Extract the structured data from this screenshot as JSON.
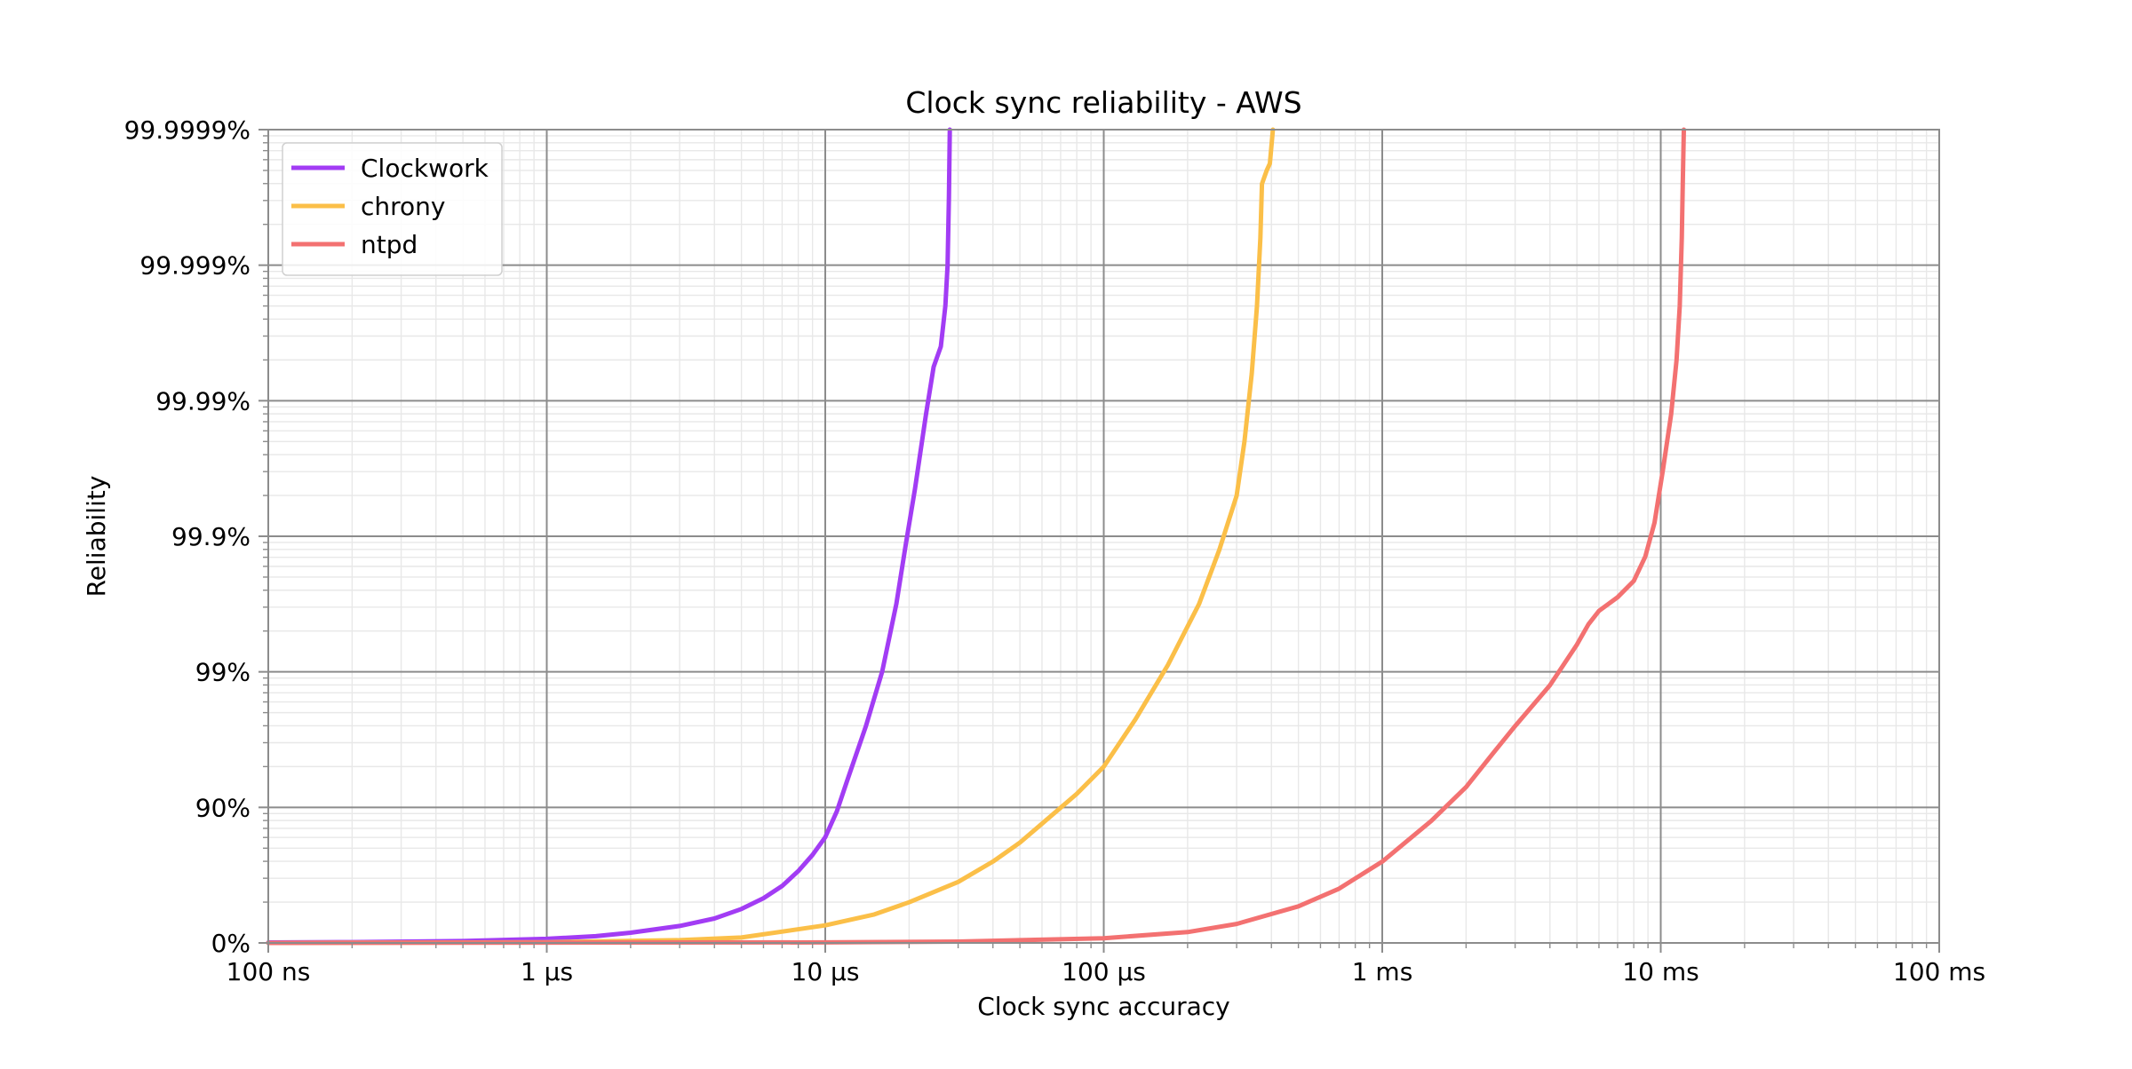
{
  "chart_data": {
    "type": "line",
    "title": "Clock sync reliability - AWS",
    "xlabel": "Clock sync accuracy",
    "ylabel": "Reliability",
    "x_scale": "log",
    "y_scale": "log of 1/(1 - reliability)",
    "xlim_seconds": [
      1e-07,
      0.1
    ],
    "ylim_nines": [
      0,
      6
    ],
    "x_ticks": [
      {
        "value": 1e-07,
        "label": "100 ns"
      },
      {
        "value": 1e-06,
        "label": "1 µs"
      },
      {
        "value": 1e-05,
        "label": "10 µs"
      },
      {
        "value": 0.0001,
        "label": "100 µs"
      },
      {
        "value": 0.001,
        "label": "1 ms"
      },
      {
        "value": 0.01,
        "label": "10 ms"
      },
      {
        "value": 0.1,
        "label": "100 ms"
      }
    ],
    "y_ticks": [
      {
        "nines": 0,
        "label": "0%"
      },
      {
        "nines": 1,
        "label": "90%"
      },
      {
        "nines": 2,
        "label": "99%"
      },
      {
        "nines": 3,
        "label": "99.9%"
      },
      {
        "nines": 4,
        "label": "99.99%"
      },
      {
        "nines": 5,
        "label": "99.999%"
      },
      {
        "nines": 6,
        "label": "99.9999%"
      }
    ],
    "grid": true,
    "legend_position": "top-left",
    "series": [
      {
        "name": "Clockwork",
        "color": "#a23cf4",
        "points": [
          [
            1e-07,
            0.003
          ],
          [
            2e-07,
            0.006
          ],
          [
            5e-07,
            0.014
          ],
          [
            1e-06,
            0.03
          ],
          [
            1.5e-06,
            0.05
          ],
          [
            2e-06,
            0.075
          ],
          [
            3e-06,
            0.125
          ],
          [
            4e-06,
            0.18
          ],
          [
            5e-06,
            0.25
          ],
          [
            6e-06,
            0.33
          ],
          [
            7e-06,
            0.42
          ],
          [
            8e-06,
            0.53
          ],
          [
            9e-06,
            0.65
          ],
          [
            1e-05,
            0.78
          ],
          [
            1.1e-05,
            0.97
          ],
          [
            1.2e-05,
            1.2
          ],
          [
            1.4e-05,
            1.6
          ],
          [
            1.6e-05,
            2.0
          ],
          [
            1.8e-05,
            2.5
          ],
          [
            1.95e-05,
            2.95
          ],
          [
            2.1e-05,
            3.35
          ],
          [
            2.3e-05,
            3.9
          ],
          [
            2.45e-05,
            4.25
          ],
          [
            2.6e-05,
            4.4
          ],
          [
            2.7e-05,
            4.7
          ],
          [
            2.75e-05,
            5.0
          ],
          [
            2.78e-05,
            5.5
          ],
          [
            2.8e-05,
            6.0
          ]
        ]
      },
      {
        "name": "chrony",
        "color": "#fbbf48",
        "points": [
          [
            1e-07,
            0.0
          ],
          [
            1e-06,
            0.005
          ],
          [
            3e-06,
            0.02
          ],
          [
            5e-06,
            0.04
          ],
          [
            1e-05,
            0.13
          ],
          [
            1.5e-05,
            0.21
          ],
          [
            2e-05,
            0.3
          ],
          [
            3e-05,
            0.45
          ],
          [
            4e-05,
            0.6
          ],
          [
            5e-05,
            0.74
          ],
          [
            6e-05,
            0.88
          ],
          [
            8e-05,
            1.1
          ],
          [
            0.0001,
            1.3
          ],
          [
            0.00013,
            1.65
          ],
          [
            0.00017,
            2.05
          ],
          [
            0.00022,
            2.5
          ],
          [
            0.00026,
            2.9
          ],
          [
            0.0003,
            3.3
          ],
          [
            0.00032,
            3.7
          ],
          [
            0.00034,
            4.2
          ],
          [
            0.000355,
            4.7
          ],
          [
            0.000365,
            5.2
          ],
          [
            0.00037,
            5.6
          ],
          [
            0.000385,
            5.7
          ],
          [
            0.000395,
            5.75
          ],
          [
            0.000405,
            6.0
          ]
        ]
      },
      {
        "name": "ntpd",
        "color": "#f37171",
        "points": [
          [
            1e-07,
            0.0
          ],
          [
            1e-05,
            0.004
          ],
          [
            3e-05,
            0.01
          ],
          [
            0.0001,
            0.035
          ],
          [
            0.0002,
            0.08
          ],
          [
            0.0003,
            0.14
          ],
          [
            0.0005,
            0.27
          ],
          [
            0.0007,
            0.4
          ],
          [
            0.001,
            0.6
          ],
          [
            0.0015,
            0.9
          ],
          [
            0.002,
            1.15
          ],
          [
            0.0025,
            1.4
          ],
          [
            0.003,
            1.6
          ],
          [
            0.004,
            1.9
          ],
          [
            0.005,
            2.2
          ],
          [
            0.0055,
            2.35
          ],
          [
            0.006,
            2.45
          ],
          [
            0.007,
            2.55
          ],
          [
            0.008,
            2.67
          ],
          [
            0.0088,
            2.85
          ],
          [
            0.0095,
            3.1
          ],
          [
            0.0102,
            3.5
          ],
          [
            0.0109,
            3.9
          ],
          [
            0.0114,
            4.3
          ],
          [
            0.0117,
            4.7
          ],
          [
            0.0119,
            5.2
          ],
          [
            0.012,
            5.6
          ],
          [
            0.0121,
            6.0
          ]
        ]
      }
    ]
  }
}
